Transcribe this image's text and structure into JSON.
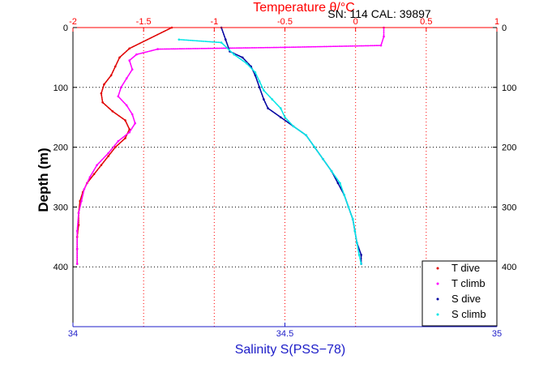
{
  "chart_data": {
    "type": "scatter",
    "title": "Temperature θ/°C",
    "subtitle": "SN: 114  CAL: 39897",
    "xlabel": "Salinity S(PSS−78)",
    "ylabel": "Depth (m)",
    "x_temperature": {
      "range": [
        -2,
        1
      ],
      "ticks": [
        "-2",
        "-1.5",
        "-1",
        "-0.5",
        "0",
        "0.5",
        "1"
      ]
    },
    "x_salinity": {
      "range": [
        34,
        35
      ],
      "ticks": [
        "34",
        "34.5",
        "35"
      ]
    },
    "y_depth": {
      "range": [
        0,
        500
      ],
      "reversed": true,
      "ticks": [
        "0",
        "100",
        "200",
        "300",
        "400"
      ]
    },
    "grid": true,
    "legend": {
      "placement": "bottom-right",
      "entries": [
        "T dive",
        "T climb",
        "S dive",
        "S climb"
      ]
    },
    "colors": {
      "T dive": "#e00000",
      "T climb": "#ff00ff",
      "S dive": "#0000a0",
      "S climb": "#00e6e6",
      "temperature_axis": "#ff0000",
      "salinity_axis": "#1c1cc8"
    },
    "series": [
      {
        "name": "T dive",
        "axis": "temperature",
        "points": [
          [
            -1.3,
            0
          ],
          [
            -1.6,
            35
          ],
          [
            -1.67,
            50
          ],
          [
            -1.7,
            65
          ],
          [
            -1.73,
            80
          ],
          [
            -1.78,
            95
          ],
          [
            -1.8,
            110
          ],
          [
            -1.79,
            125
          ],
          [
            -1.72,
            140
          ],
          [
            -1.63,
            155
          ],
          [
            -1.6,
            170
          ],
          [
            -1.63,
            185
          ],
          [
            -1.7,
            200
          ],
          [
            -1.75,
            215
          ],
          [
            -1.8,
            230
          ],
          [
            -1.85,
            245
          ],
          [
            -1.9,
            260
          ],
          [
            -1.93,
            275
          ],
          [
            -1.95,
            290
          ],
          [
            -1.96,
            310
          ],
          [
            -1.96,
            330
          ],
          [
            -1.97,
            350
          ],
          [
            -1.97,
            370
          ],
          [
            -1.97,
            395
          ]
        ]
      },
      {
        "name": "T climb",
        "axis": "temperature",
        "points": [
          [
            0.2,
            0
          ],
          [
            0.2,
            15
          ],
          [
            0.18,
            30
          ],
          [
            -0.5,
            33
          ],
          [
            -1.4,
            36
          ],
          [
            -1.55,
            45
          ],
          [
            -1.6,
            55
          ],
          [
            -1.58,
            70
          ],
          [
            -1.62,
            85
          ],
          [
            -1.66,
            100
          ],
          [
            -1.68,
            115
          ],
          [
            -1.62,
            130
          ],
          [
            -1.58,
            145
          ],
          [
            -1.56,
            160
          ],
          [
            -1.6,
            175
          ],
          [
            -1.68,
            190
          ],
          [
            -1.75,
            210
          ],
          [
            -1.83,
            230
          ],
          [
            -1.88,
            250
          ],
          [
            -1.92,
            270
          ],
          [
            -1.94,
            290
          ],
          [
            -1.96,
            310
          ],
          [
            -1.97,
            340
          ],
          [
            -1.97,
            370
          ],
          [
            -1.97,
            395
          ]
        ]
      },
      {
        "name": "S dive",
        "axis": "salinity",
        "points": [
          [
            34.35,
            0
          ],
          [
            34.36,
            20
          ],
          [
            34.37,
            40
          ],
          [
            34.4,
            50
          ],
          [
            34.42,
            65
          ],
          [
            34.43,
            80
          ],
          [
            34.44,
            100
          ],
          [
            34.45,
            120
          ],
          [
            34.46,
            135
          ],
          [
            34.49,
            150
          ],
          [
            34.52,
            165
          ],
          [
            34.55,
            180
          ],
          [
            34.57,
            200
          ],
          [
            34.59,
            220
          ],
          [
            34.61,
            240
          ],
          [
            34.625,
            260
          ],
          [
            34.64,
            280
          ],
          [
            34.65,
            300
          ],
          [
            34.66,
            320
          ],
          [
            34.665,
            340
          ],
          [
            34.67,
            360
          ],
          [
            34.68,
            380
          ],
          [
            34.68,
            395
          ]
        ]
      },
      {
        "name": "S climb",
        "axis": "salinity",
        "points": [
          [
            34.25,
            20
          ],
          [
            34.35,
            25
          ],
          [
            34.38,
            45
          ],
          [
            34.41,
            60
          ],
          [
            34.43,
            75
          ],
          [
            34.44,
            90
          ],
          [
            34.45,
            105
          ],
          [
            34.47,
            120
          ],
          [
            34.49,
            135
          ],
          [
            34.5,
            150
          ],
          [
            34.52,
            165
          ],
          [
            34.55,
            180
          ],
          [
            34.57,
            200
          ],
          [
            34.59,
            220
          ],
          [
            34.61,
            240
          ],
          [
            34.63,
            260
          ],
          [
            34.64,
            280
          ],
          [
            34.65,
            300
          ],
          [
            34.66,
            320
          ],
          [
            34.665,
            340
          ],
          [
            34.67,
            360
          ],
          [
            34.675,
            380
          ],
          [
            34.68,
            395
          ]
        ]
      }
    ]
  }
}
